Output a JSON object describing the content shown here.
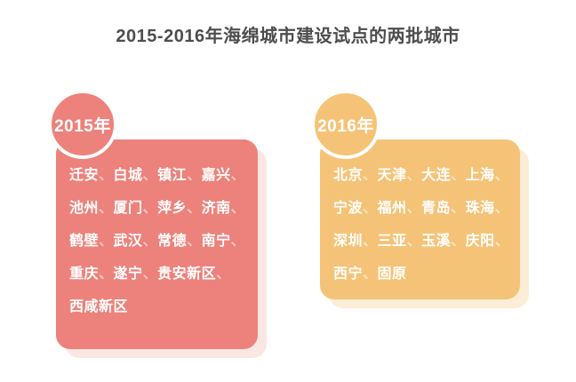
{
  "title": "2015-2016年海绵城市建设试点的两批城市",
  "separator": "、",
  "colors": {
    "page_bg": "#ffffff",
    "title_text": "#4d4d4d",
    "batch1_fill": "#ec827b",
    "batch1_shadow": "#fae7e4",
    "batch2_fill": "#f5c377",
    "batch2_shadow": "#fcedd6",
    "card_text": "#ffffff"
  },
  "groups": [
    {
      "year_label": "2015年",
      "lines": [
        [
          "迁安",
          "白城",
          "镇江",
          "嘉兴"
        ],
        [
          "池州",
          "厦门",
          "萍乡",
          "济南"
        ],
        [
          "鹤壁",
          "武汉",
          "常德",
          "南宁"
        ],
        [
          "重庆",
          "遂宁",
          "贵安新区"
        ],
        [
          "西咸新区"
        ]
      ]
    },
    {
      "year_label": "2016年",
      "lines": [
        [
          "北京",
          "天津",
          "大连",
          "上海"
        ],
        [
          "宁波",
          "福州",
          "青岛",
          "珠海"
        ],
        [
          "深圳",
          "三亚",
          "玉溪",
          "庆阳"
        ],
        [
          "西宁",
          "固原"
        ]
      ]
    }
  ]
}
